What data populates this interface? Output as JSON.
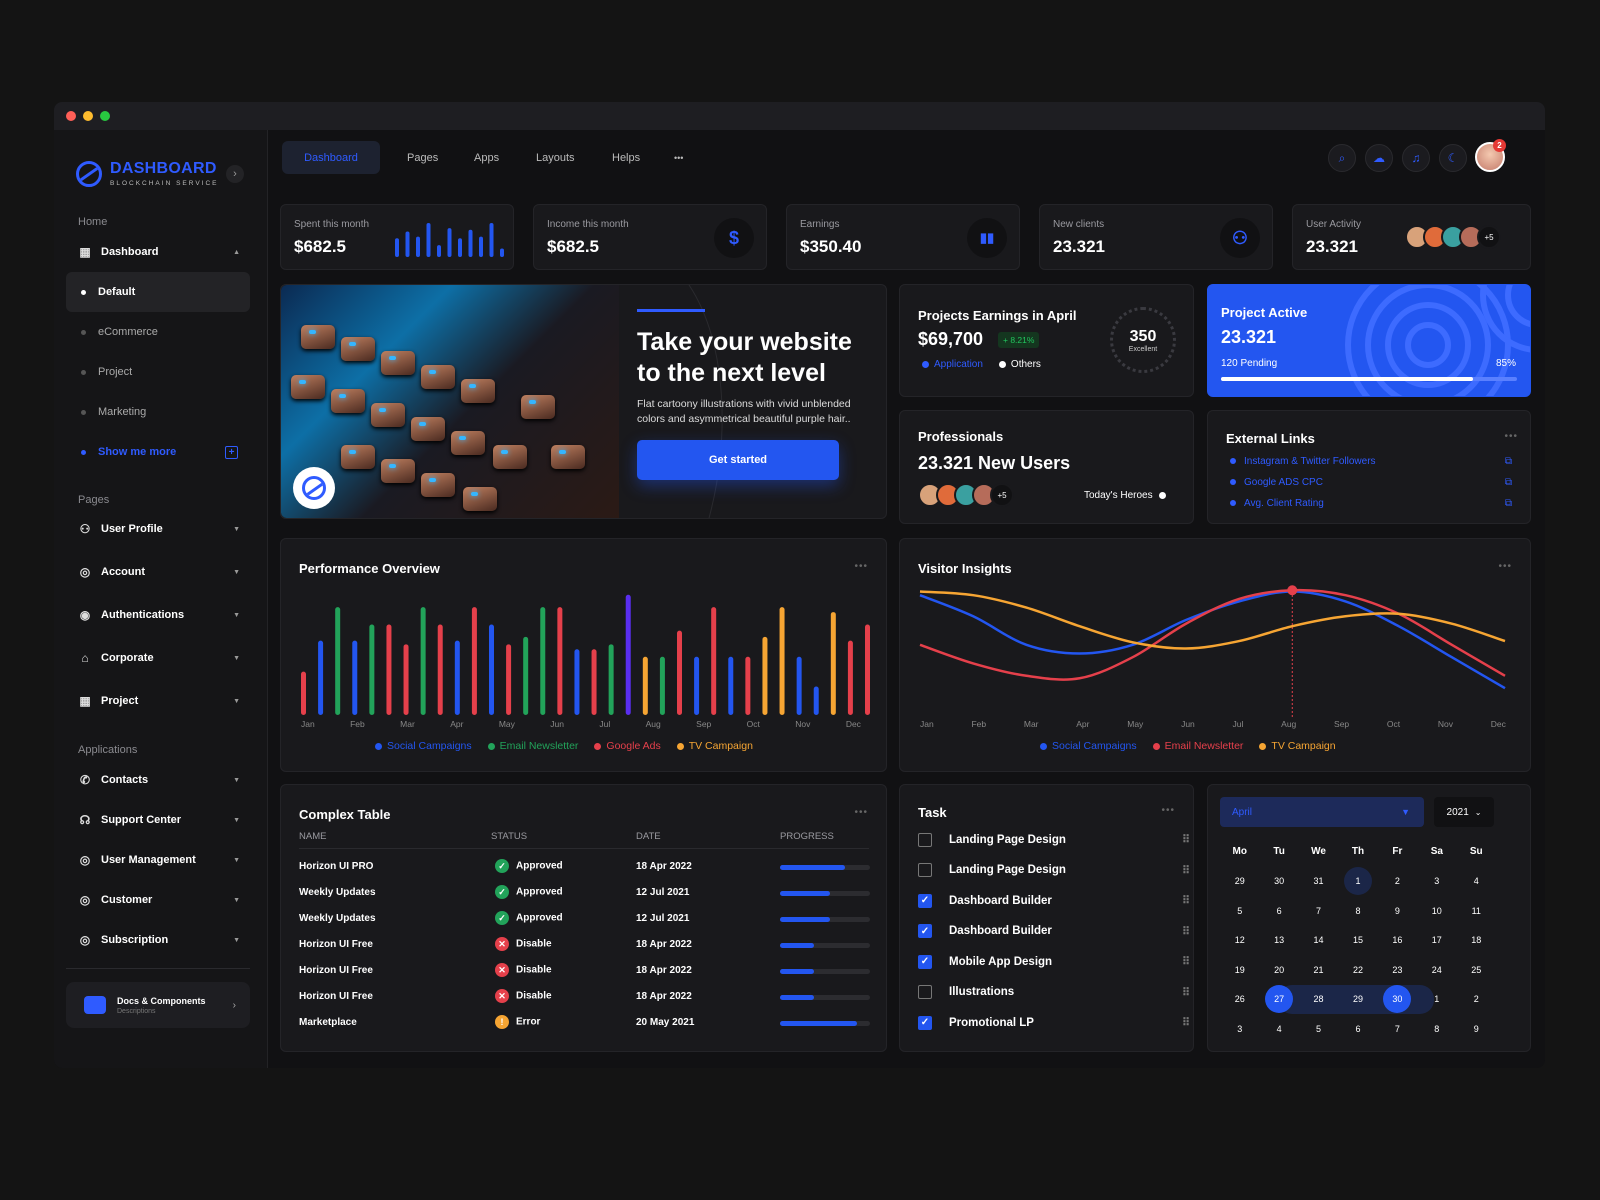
{
  "app": {
    "title": "DASHBOARD",
    "subtitle": "BLOCKCHAIN SERVICE"
  },
  "sidebar": {
    "home_label": "Home",
    "dashboard": "Dashboard",
    "sub_items": [
      "Default",
      "eCommerce",
      "Project",
      "Marketing",
      "Show me more"
    ],
    "pages_label": "Pages",
    "pages": [
      "User Profile",
      "Account",
      "Authentications",
      "Corporate",
      "Project"
    ],
    "apps_label": "Applications",
    "apps": [
      "Contacts",
      "Support Center",
      "User Management",
      "Customer",
      "Subscription"
    ],
    "docs_title": "Docs & Components",
    "docs_sub": "Descriptions"
  },
  "topnav": {
    "tabs": [
      "Dashboard",
      "Pages",
      "Apps",
      "Layouts",
      "Helps"
    ],
    "more": "•••",
    "notif_count": "2"
  },
  "stats": [
    {
      "label": "Spent this month",
      "value": "$682.5",
      "bars": [
        0.55,
        0.75,
        0.6,
        1.0,
        0.35,
        0.85,
        0.55,
        0.8,
        0.6,
        1.0,
        0.25
      ]
    },
    {
      "label": "Income this month",
      "value": "$682.5",
      "icon": "$"
    },
    {
      "label": "Earnings",
      "value": "$350.40"
    },
    {
      "label": "New clients",
      "value": "23.321"
    },
    {
      "label": "User Activity",
      "value": "23.321",
      "more": "+5"
    }
  ],
  "hero": {
    "title": "Take your website to the next level",
    "text": "Flat cartoony illustrations with vivid unblended colors and asymmetrical beautiful purple hair..",
    "button": "Get started"
  },
  "earnings": {
    "title": "Projects Earnings in April",
    "value": "$69,700",
    "change": "+ 8.21%",
    "legend": [
      "Application",
      "Others"
    ],
    "gauge_value": "350",
    "gauge_label": "Excellent"
  },
  "active": {
    "title": "Project Active",
    "value": "23.321",
    "pending": "120 Pending",
    "percent": "85%",
    "progress": 0.85
  },
  "pros": {
    "title": "Professionals",
    "value": "23.321 New Users",
    "more": "+5",
    "heroes": "Today's Heroes"
  },
  "links": {
    "title": "External Links",
    "items": [
      "Instagram & Twitter Followers",
      "Google ADS CPC",
      "Avg. Client Rating"
    ]
  },
  "colors": {
    "blue": "#2356f0",
    "green": "#22a35a",
    "red": "#e5404b",
    "orange": "#f6a533",
    "purple": "#5a2ef0"
  },
  "chart_data": [
    {
      "type": "bar",
      "title": "Performance Overview",
      "categories": [
        "Jan",
        "Feb",
        "Mar",
        "Apr",
        "May",
        "Jun",
        "Jul",
        "Aug",
        "Sep",
        "Oct",
        "Nov",
        "Dec"
      ],
      "bar_values": [
        35,
        60,
        87,
        60,
        73,
        73,
        57,
        87,
        73,
        60,
        87,
        73,
        57,
        63,
        87,
        87,
        53,
        53,
        57,
        97,
        47,
        47,
        68,
        47,
        87,
        47,
        47,
        63,
        87,
        47,
        23,
        83,
        60,
        73
      ],
      "bar_colors": [
        "red",
        "blue",
        "green",
        "blue",
        "green",
        "red",
        "red",
        "green",
        "red",
        "blue",
        "red",
        "blue",
        "red",
        "green",
        "green",
        "red",
        "blue",
        "red",
        "green",
        "purple",
        "orange",
        "green",
        "red",
        "blue",
        "red",
        "blue",
        "red",
        "orange",
        "orange",
        "blue",
        "blue",
        "orange",
        "red",
        "red"
      ],
      "legend": [
        "Social Campaigns",
        "Email Newsletter",
        "Google Ads",
        "TV Campaign"
      ]
    },
    {
      "type": "line",
      "title": "Visitor Insights",
      "categories": [
        "Jan",
        "Feb",
        "Mar",
        "Apr",
        "May",
        "Jun",
        "Jul",
        "Aug",
        "Sep",
        "Oct",
        "Nov",
        "Dec"
      ],
      "series": [
        {
          "name": "Social Campaigns",
          "values": [
            95,
            78,
            55,
            48,
            55,
            75,
            90,
            98,
            90,
            70,
            45,
            20
          ]
        },
        {
          "name": "Email Newsletter",
          "values": [
            55,
            40,
            30,
            28,
            45,
            72,
            92,
            99,
            95,
            80,
            55,
            30
          ]
        },
        {
          "name": "TV Campaign",
          "values": [
            98,
            95,
            85,
            70,
            57,
            52,
            58,
            70,
            78,
            80,
            72,
            58
          ]
        }
      ],
      "ylim": [
        0,
        100
      ],
      "highlight": "Aug"
    }
  ],
  "table": {
    "title": "Complex Table",
    "headers": [
      "NAME",
      "STATUS",
      "DATE",
      "PROGRESS"
    ],
    "rows": [
      {
        "name": "Horizon UI PRO",
        "status": "Approved",
        "kind": "ok",
        "date": "18 Apr 2022",
        "progress": 0.72
      },
      {
        "name": "Weekly Updates",
        "status": "Approved",
        "kind": "ok",
        "date": "12 Jul 2021",
        "progress": 0.55
      },
      {
        "name": "Weekly Updates",
        "status": "Approved",
        "kind": "ok",
        "date": "12 Jul 2021",
        "progress": 0.55
      },
      {
        "name": "Horizon UI Free",
        "status": "Disable",
        "kind": "bad",
        "date": "18 Apr 2022",
        "progress": 0.38
      },
      {
        "name": "Horizon UI Free",
        "status": "Disable",
        "kind": "bad",
        "date": "18 Apr 2022",
        "progress": 0.38
      },
      {
        "name": "Horizon UI Free",
        "status": "Disable",
        "kind": "bad",
        "date": "18 Apr 2022",
        "progress": 0.38
      },
      {
        "name": "Marketplace",
        "status": "Error",
        "kind": "warn",
        "date": "20 May 2021",
        "progress": 0.85
      }
    ]
  },
  "tasks": {
    "title": "Task",
    "items": [
      {
        "label": "Landing Page Design",
        "done": false
      },
      {
        "label": "Landing Page Design",
        "done": false
      },
      {
        "label": "Dashboard Builder",
        "done": true
      },
      {
        "label": "Dashboard Builder",
        "done": true
      },
      {
        "label": "Mobile App Design",
        "done": true
      },
      {
        "label": "Illustrations",
        "done": false
      },
      {
        "label": "Promotional LP",
        "done": true
      }
    ]
  },
  "calendar": {
    "month": "April",
    "year": "2021",
    "days": [
      "Mo",
      "Tu",
      "We",
      "Th",
      "Fr",
      "Sa",
      "Su"
    ],
    "weeks": [
      [
        "29",
        "30",
        "31",
        "1",
        "2",
        "3",
        "4"
      ],
      [
        "5",
        "6",
        "7",
        "8",
        "9",
        "10",
        "11"
      ],
      [
        "12",
        "13",
        "14",
        "15",
        "16",
        "17",
        "18"
      ],
      [
        "19",
        "20",
        "21",
        "22",
        "23",
        "24",
        "25"
      ],
      [
        "26",
        "27",
        "28",
        "29",
        "30",
        "1",
        "2"
      ],
      [
        "3",
        "4",
        "5",
        "6",
        "7",
        "8",
        "9"
      ]
    ]
  }
}
